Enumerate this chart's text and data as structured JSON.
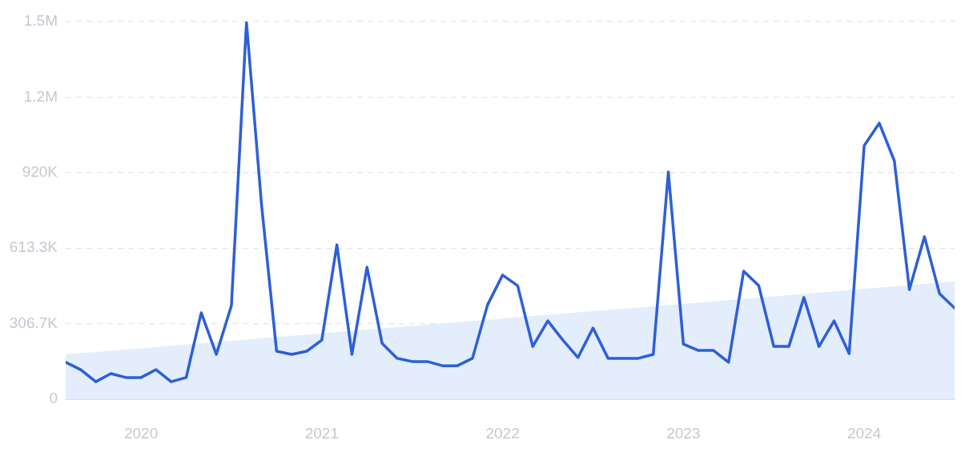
{
  "chart_data": {
    "type": "line",
    "x": [
      "2019-08",
      "2019-09",
      "2019-10",
      "2019-11",
      "2019-12",
      "2020-01",
      "2020-02",
      "2020-03",
      "2020-04",
      "2020-05",
      "2020-06",
      "2020-07",
      "2020-08",
      "2020-09",
      "2020-10",
      "2020-11",
      "2020-12",
      "2021-01",
      "2021-02",
      "2021-03",
      "2021-04",
      "2021-05",
      "2021-06",
      "2021-07",
      "2021-08",
      "2021-09",
      "2021-10",
      "2021-11",
      "2021-12",
      "2022-01",
      "2022-02",
      "2022-03",
      "2022-04",
      "2022-05",
      "2022-06",
      "2022-07",
      "2022-08",
      "2022-09",
      "2022-10",
      "2022-11",
      "2022-12",
      "2023-01",
      "2023-02",
      "2023-03",
      "2023-04",
      "2023-05",
      "2023-06",
      "2023-07",
      "2023-08",
      "2023-09",
      "2023-10",
      "2023-11",
      "2023-12",
      "2024-01",
      "2024-02",
      "2024-03",
      "2024-04",
      "2024-05",
      "2024-06",
      "2024-07"
    ],
    "series": [
      {
        "type": "area",
        "color": "#e3edfb",
        "x": [
          "2019-08",
          "2024-07"
        ],
        "values": [
          182000,
          478000
        ]
      },
      {
        "color": "#2d5fd7",
        "values": [
          150000,
          120000,
          71000,
          104000,
          88000,
          88000,
          120000,
          71000,
          88000,
          351000,
          182000,
          380000,
          1530000,
          790000,
          195000,
          182000,
          195000,
          240000,
          627000,
          182000,
          536000,
          227000,
          166000,
          153000,
          153000,
          136000,
          136000,
          166000,
          383000,
          504000,
          461000,
          214000,
          318000,
          240000,
          169000,
          289000,
          166000,
          166000,
          166000,
          182000,
          923000,
          224000,
          198000,
          198000,
          150000,
          520000,
          461000,
          214000,
          214000,
          413000,
          214000,
          318000,
          185000,
          1030000,
          1121000,
          968000,
          445000,
          660000,
          429000,
          370000
        ]
      }
    ],
    "xlim": [
      "2019-08",
      "2024-07"
    ],
    "xticks": [
      "2020",
      "2021",
      "2022",
      "2023",
      "2024"
    ],
    "ylim": [
      0,
      1533300
    ],
    "yticks": [
      0,
      {
        "value": 306700,
        "label": "306.7K"
      },
      {
        "value": 613300,
        "label": "613.3K"
      },
      {
        "value": 920000,
        "label": "920K"
      },
      {
        "value": 1226700,
        "label": "1.2M"
      },
      {
        "value": 1533300,
        "label": "1.5M"
      }
    ],
    "grid": "y",
    "legend": false,
    "marker": "none",
    "line_style": "solid"
  }
}
